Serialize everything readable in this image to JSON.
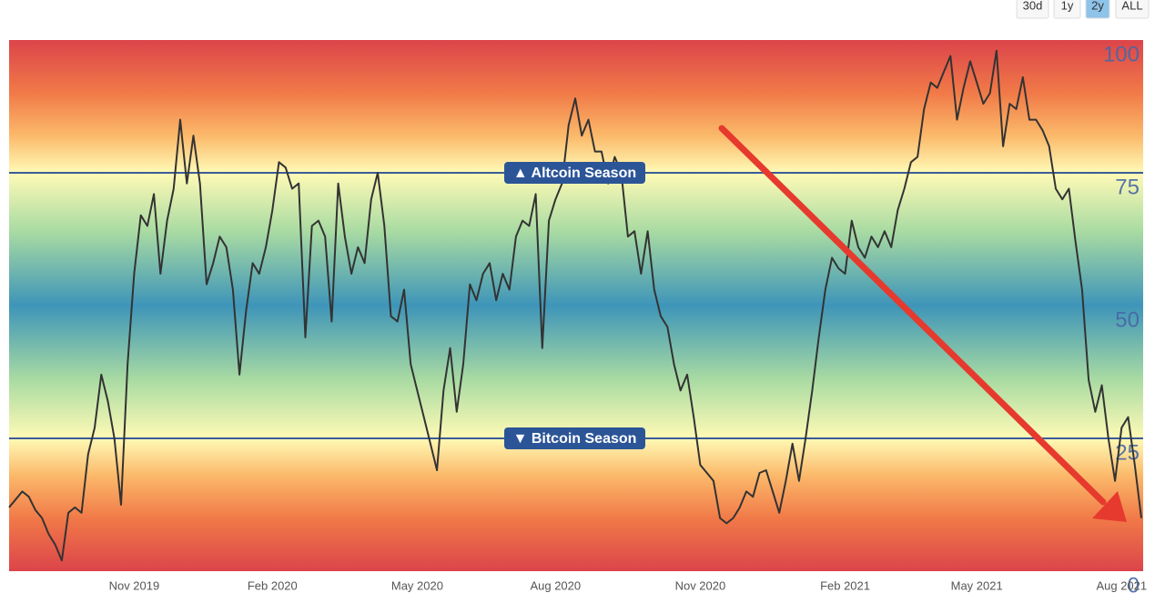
{
  "chart_data": {
    "type": "line",
    "range_buttons": [
      "30d",
      "1y",
      "2y",
      "ALL"
    ],
    "selected_range": "2y",
    "color": "#333333",
    "ylim": [
      0,
      100
    ],
    "yticks": [
      0,
      25,
      50,
      75,
      100
    ],
    "plot_lines": [
      {
        "value": 75,
        "label": "▲ Altcoin Season"
      },
      {
        "value": 25,
        "label": "▼ Bitcoin Season"
      }
    ],
    "categories": [
      null,
      null,
      null,
      null,
      null,
      null,
      null,
      null,
      null,
      null,
      null,
      null,
      null,
      null,
      null,
      null,
      null,
      null,
      null,
      "Nov 2019",
      null,
      null,
      null,
      null,
      null,
      null,
      null,
      null,
      null,
      null,
      null,
      null,
      null,
      null,
      null,
      null,
      null,
      null,
      null,
      null,
      "Feb 2020",
      null,
      null,
      null,
      null,
      null,
      null,
      null,
      null,
      null,
      null,
      null,
      null,
      null,
      null,
      null,
      null,
      null,
      null,
      null,
      null,
      null,
      "May 2020",
      null,
      null,
      null,
      null,
      null,
      null,
      null,
      null,
      null,
      null,
      null,
      null,
      null,
      null,
      null,
      null,
      null,
      null,
      null,
      null,
      "Aug 2020",
      null,
      null,
      null,
      null,
      null,
      null,
      null,
      null,
      null,
      null,
      null,
      null,
      null,
      null,
      null,
      null,
      null,
      null,
      null,
      null,
      null,
      "Nov 2020",
      null,
      null,
      null,
      null,
      null,
      null,
      null,
      null,
      null,
      null,
      null,
      null,
      null,
      null,
      null,
      null,
      null,
      null,
      null,
      null,
      null,
      "Feb 2021",
      null,
      null,
      null,
      null,
      null,
      null,
      null,
      null,
      null,
      null,
      null,
      null,
      null,
      null,
      null,
      null,
      null,
      null,
      null,
      "May 2021",
      null,
      null,
      null,
      null,
      null,
      null,
      null,
      null,
      null,
      null,
      null,
      null,
      null,
      null,
      null,
      null,
      null,
      null,
      null,
      null,
      null,
      "Aug 2021",
      null,
      null,
      null
    ],
    "values": [
      12,
      13.5,
      15,
      14,
      11.5,
      10,
      7,
      5,
      2,
      11,
      12,
      11,
      22,
      27,
      37,
      32,
      25,
      12.5,
      39,
      56,
      67,
      65,
      71,
      56,
      66,
      72,
      85,
      73,
      82,
      73,
      54,
      58,
      63,
      61,
      53,
      37,
      49,
      58,
      56,
      61,
      68,
      77,
      76,
      72,
      73,
      44,
      65,
      66,
      63,
      47,
      73,
      63,
      56,
      61,
      58,
      70,
      75,
      65,
      48,
      47,
      53,
      39,
      34,
      29,
      24,
      19,
      34,
      42,
      30,
      39,
      54,
      51,
      56,
      58,
      51,
      56,
      53,
      63,
      66,
      65,
      71,
      42,
      66,
      70,
      73,
      84,
      89,
      82,
      85,
      79,
      79,
      73,
      78,
      75,
      63,
      64,
      56,
      64,
      53,
      48,
      46,
      39,
      34,
      37,
      29,
      20,
      18.5,
      17,
      10,
      9,
      10,
      12,
      15,
      14,
      18.5,
      19,
      15,
      11,
      17,
      24,
      17,
      25,
      34,
      44,
      53,
      59,
      57,
      56,
      66,
      61,
      59,
      63,
      61,
      64,
      61,
      68,
      72,
      77,
      78,
      87,
      92,
      91,
      94,
      97,
      85,
      91,
      96,
      92,
      88,
      90,
      98,
      80,
      88,
      87,
      93,
      85,
      85,
      83,
      80,
      72,
      70,
      72,
      62,
      53,
      36,
      30,
      35,
      25,
      17,
      27,
      29,
      20,
      10
    ]
  }
}
